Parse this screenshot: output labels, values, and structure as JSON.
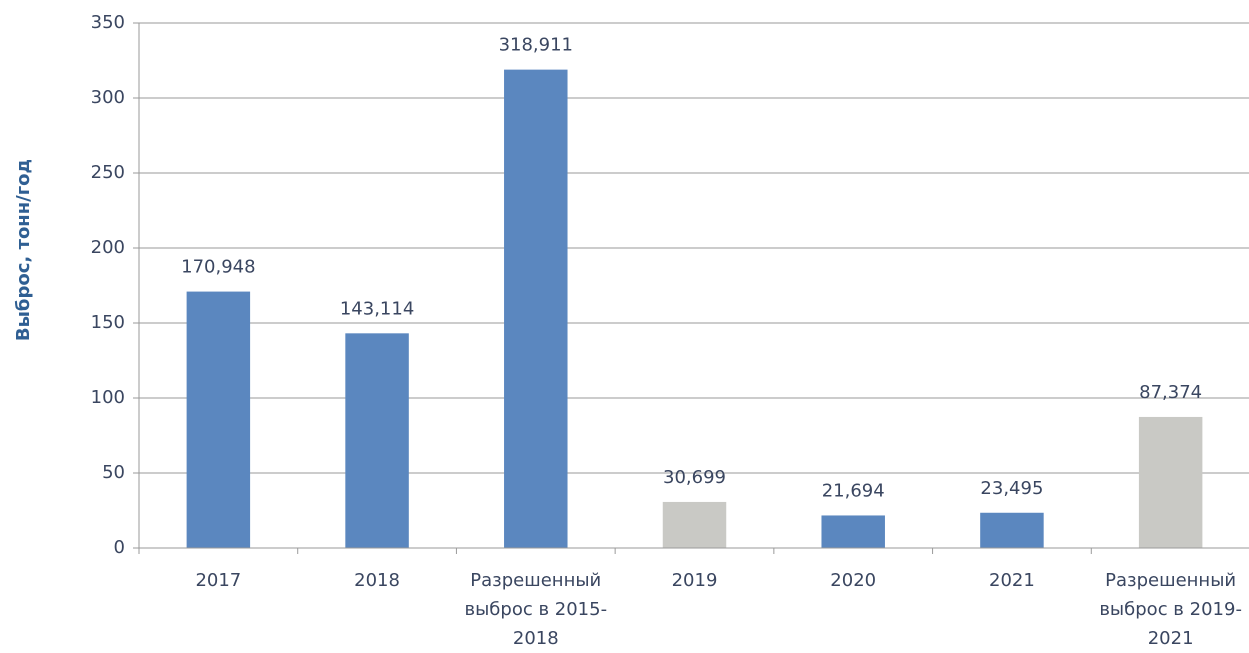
{
  "chart_data": {
    "type": "bar",
    "y_label": "Выброс, тонн/год",
    "categories": [
      "2017",
      "2018",
      "Разрешенный выброс в 2015-2018",
      "2019",
      "2020",
      "2021",
      "Разрешенный выброс в 2019-2021"
    ],
    "values": [
      170.948,
      143.114,
      318.911,
      30.699,
      21.694,
      23.495,
      87.374
    ],
    "value_labels": [
      "170,948",
      "143,114",
      "318,911",
      "30,699",
      "21,694",
      "23,495",
      "87,374"
    ],
    "colors": [
      "#5b87bf",
      "#5b87bf",
      "#5b87bf",
      "#c9c9c5",
      "#5b87bf",
      "#5b87bf",
      "#c9c9c5"
    ],
    "ylim": [
      0,
      350
    ],
    "yticks": [
      0,
      50,
      100,
      150,
      200,
      250,
      300,
      350
    ],
    "grid": true
  }
}
